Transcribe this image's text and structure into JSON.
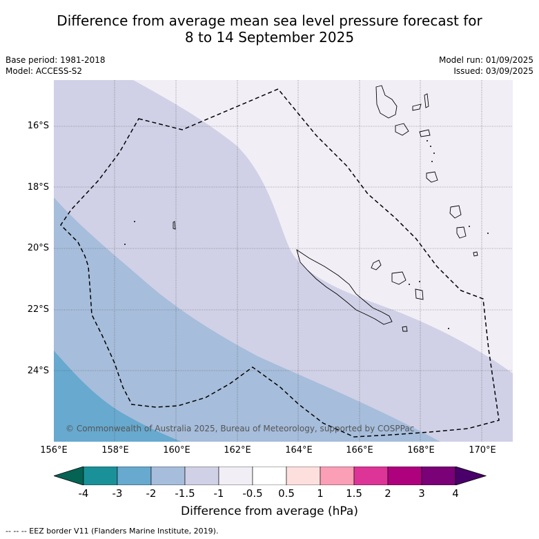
{
  "title_line1": "Difference from average mean sea level pressure forecast for",
  "title_line2": "8 to 14 September 2025",
  "base_period": "Base period: 1981-2018",
  "model": "Model: ACCESS-S2",
  "model_run": "Model run: 01/09/2025",
  "issued": "Issued: 03/09/2025",
  "lat_labels": [
    "16°S",
    "18°S",
    "20°S",
    "22°S",
    "24°S"
  ],
  "lon_labels": [
    "156°E",
    "158°E",
    "160°E",
    "162°E",
    "164°E",
    "166°E",
    "168°E",
    "170°E"
  ],
  "copyright": "© Commonwealth of Australia 2025, Bureau of Meteorology, supported by COSPPac",
  "colorbar": {
    "ticks": [
      "-4",
      "-3",
      "-2",
      "-1.5",
      "-1",
      "-0.5",
      "0.5",
      "1",
      "1.5",
      "2",
      "3",
      "4"
    ],
    "colors": [
      "#046353",
      "#1a9199",
      "#67a9cf",
      "#a6bddb",
      "#d0d1e6",
      "#f1eef6",
      "#ffffff",
      "#fde0dd",
      "#fa9fb5",
      "#dd3497",
      "#ae017e",
      "#7a0177",
      "#49006a"
    ],
    "label": "Difference from average (hPa)"
  },
  "footer": "-- -- -- EEZ border V11 (Flanders Marine Institute, 2019)."
}
